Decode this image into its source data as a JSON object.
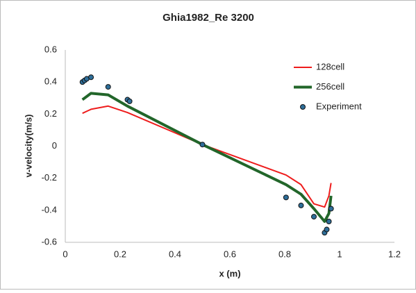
{
  "chart_data": {
    "type": "line",
    "title": "Ghia1982_Re 3200",
    "x_label": "x (m)",
    "y_label": "v-velocity(m/s)",
    "xlim": [
      0,
      1.2
    ],
    "xticks": [
      0,
      0.2,
      0.4,
      0.6,
      0.8,
      1,
      1.2
    ],
    "ylim": [
      -0.6,
      0.6
    ],
    "yticks": [
      -0.6,
      -0.4,
      -0.2,
      0,
      0.2,
      0.4,
      0.6
    ],
    "grid": false,
    "legend": "upper right",
    "series": [
      {
        "name": "128cell",
        "type": "line",
        "color": "#ee1c1c",
        "line_width": 2,
        "x": [
          0.0625,
          0.0938,
          0.1563,
          0.2266,
          0.5,
          0.8047,
          0.8594,
          0.9063,
          0.9453,
          0.9609,
          0.9688
        ],
        "values": [
          0.205,
          0.23,
          0.25,
          0.21,
          0.01,
          -0.18,
          -0.24,
          -0.36,
          -0.38,
          -0.31,
          -0.23
        ]
      },
      {
        "name": "256cell",
        "type": "line",
        "color": "#22662a",
        "line_width": 4,
        "x": [
          0.0625,
          0.0938,
          0.1563,
          0.2266,
          0.5,
          0.8047,
          0.8594,
          0.9063,
          0.9453,
          0.9609,
          0.9688
        ],
        "values": [
          0.29,
          0.33,
          0.32,
          0.25,
          0.01,
          -0.24,
          -0.3,
          -0.39,
          -0.47,
          -0.42,
          -0.31
        ]
      },
      {
        "name": "Experiment",
        "type": "scatter",
        "color": "#2e6e99",
        "x": [
          0.0625,
          0.0703,
          0.0781,
          0.0938,
          0.1563,
          0.2266,
          0.2344,
          0.5,
          0.8047,
          0.8594,
          0.9063,
          0.9453,
          0.9531,
          0.9609,
          0.9688
        ],
        "values": [
          0.4,
          0.41,
          0.42,
          0.43,
          0.37,
          0.29,
          0.28,
          0.01,
          -0.32,
          -0.37,
          -0.44,
          -0.54,
          -0.52,
          -0.47,
          -0.39
        ]
      }
    ]
  }
}
